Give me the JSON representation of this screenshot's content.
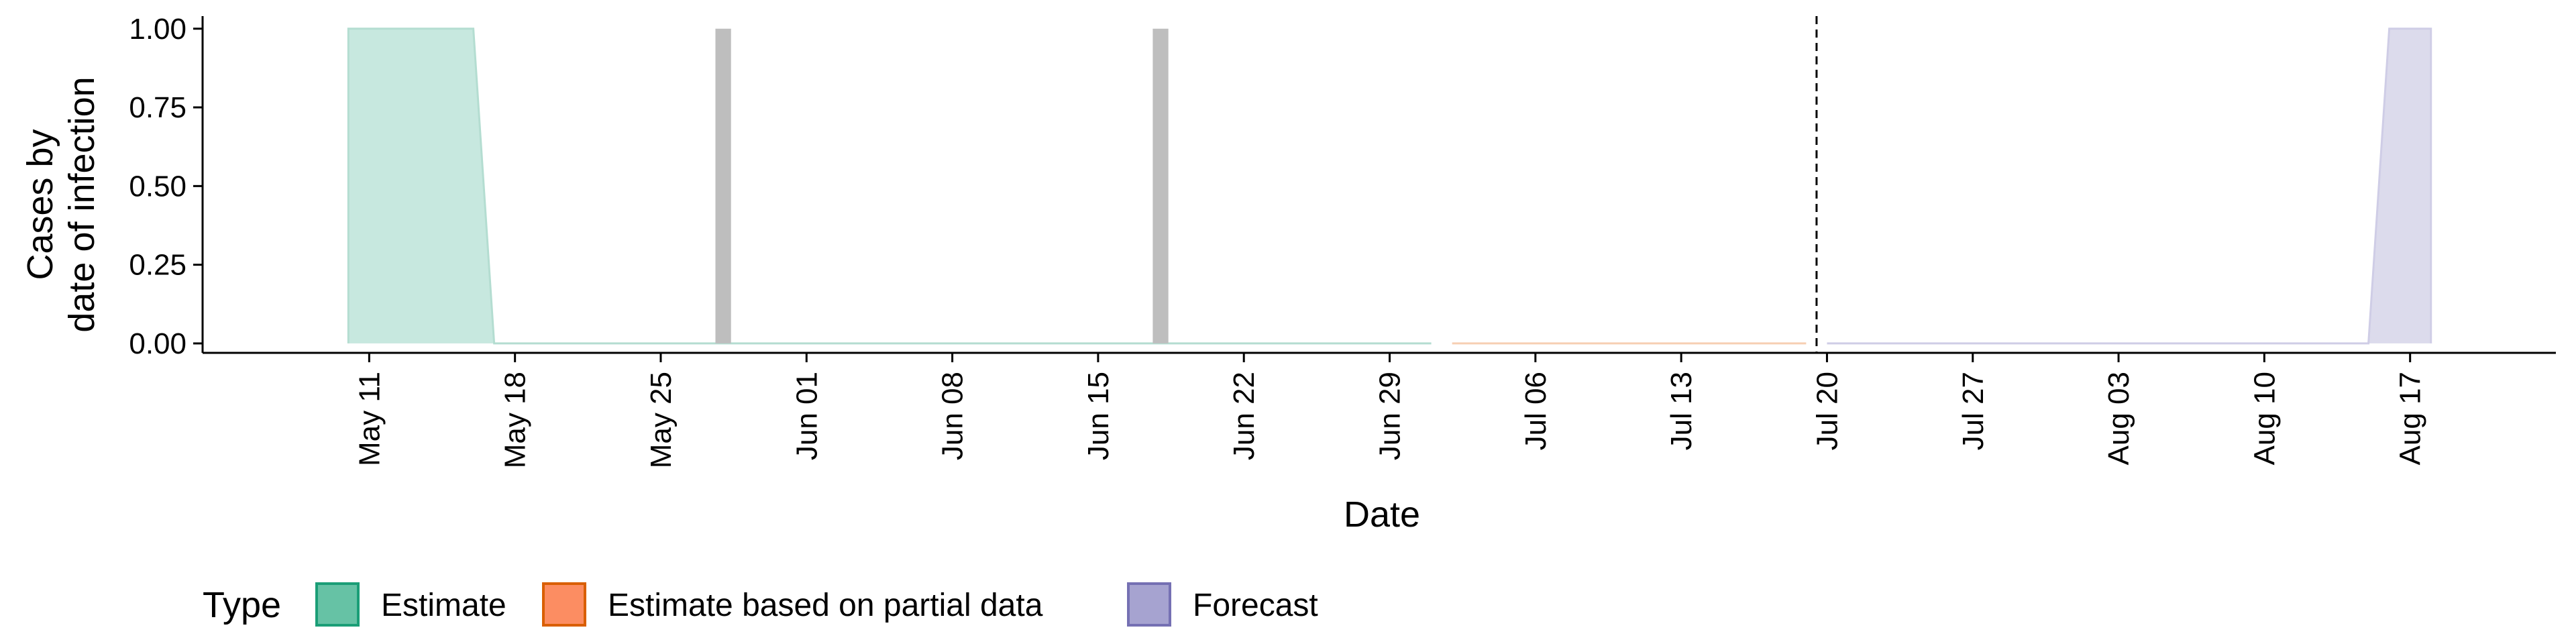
{
  "chart_data": {
    "type": "area",
    "xlabel": "Date",
    "ylabel_lines": [
      "Cases by",
      "date of infection"
    ],
    "ylim": [
      -0.03,
      1.04
    ],
    "yticks": [
      0.0,
      0.25,
      0.5,
      0.75,
      1.0
    ],
    "ytick_labels": [
      "0.00",
      "0.25",
      "0.50",
      "0.75",
      "1.00"
    ],
    "xlim": [
      "2020-05-03",
      "2020-08-24"
    ],
    "xticks": [
      "2020-05-11",
      "2020-05-18",
      "2020-05-25",
      "2020-06-01",
      "2020-06-08",
      "2020-06-15",
      "2020-06-22",
      "2020-06-29",
      "2020-07-06",
      "2020-07-13",
      "2020-07-20",
      "2020-07-27",
      "2020-08-03",
      "2020-08-10",
      "2020-08-17"
    ],
    "xtick_labels": [
      "May 11",
      "May 18",
      "May 25",
      "Jun 01",
      "Jun 08",
      "Jun 15",
      "Jun 22",
      "Jun 29",
      "Jul 06",
      "Jul 13",
      "Jul 20",
      "Jul 27",
      "Aug 03",
      "Aug 10",
      "Aug 17"
    ],
    "series": [
      {
        "name": "Estimate",
        "fill": "#c7e8df",
        "stroke": "#b4ddd1",
        "points": [
          [
            "2020-05-10",
            0
          ],
          [
            "2020-05-10",
            1
          ],
          [
            "2020-05-16",
            1
          ],
          [
            "2020-05-17",
            0
          ],
          [
            "2020-07-01",
            0
          ]
        ]
      },
      {
        "name": "Estimate based on partial data",
        "fill": "#f9dcc6",
        "stroke": "#f6cfb3",
        "points": [
          [
            "2020-07-02",
            0
          ],
          [
            "2020-07-19",
            0
          ]
        ]
      },
      {
        "name": "Forecast",
        "fill": "#dcdbec",
        "stroke": "#cfcde6",
        "points": [
          [
            "2020-07-20",
            0
          ],
          [
            "2020-08-15",
            0
          ],
          [
            "2020-08-16",
            1
          ],
          [
            "2020-08-18",
            1
          ],
          [
            "2020-08-18",
            0
          ]
        ]
      }
    ],
    "reported_cases": {
      "color": "#bebebe",
      "bars": [
        {
          "date": "2020-05-28",
          "value": 1
        },
        {
          "date": "2020-06-18",
          "value": 1
        }
      ]
    },
    "vline_date": "2020-07-19"
  },
  "legend": {
    "title": "Type",
    "items": [
      {
        "label": "Estimate",
        "fill": "#66c2a5",
        "stroke": "#1b9e77"
      },
      {
        "label": "Estimate based on partial data",
        "fill": "#fc8d62",
        "stroke": "#d95f02"
      },
      {
        "label": "Forecast",
        "fill": "#a6a3d0",
        "stroke": "#7570b3"
      }
    ]
  }
}
